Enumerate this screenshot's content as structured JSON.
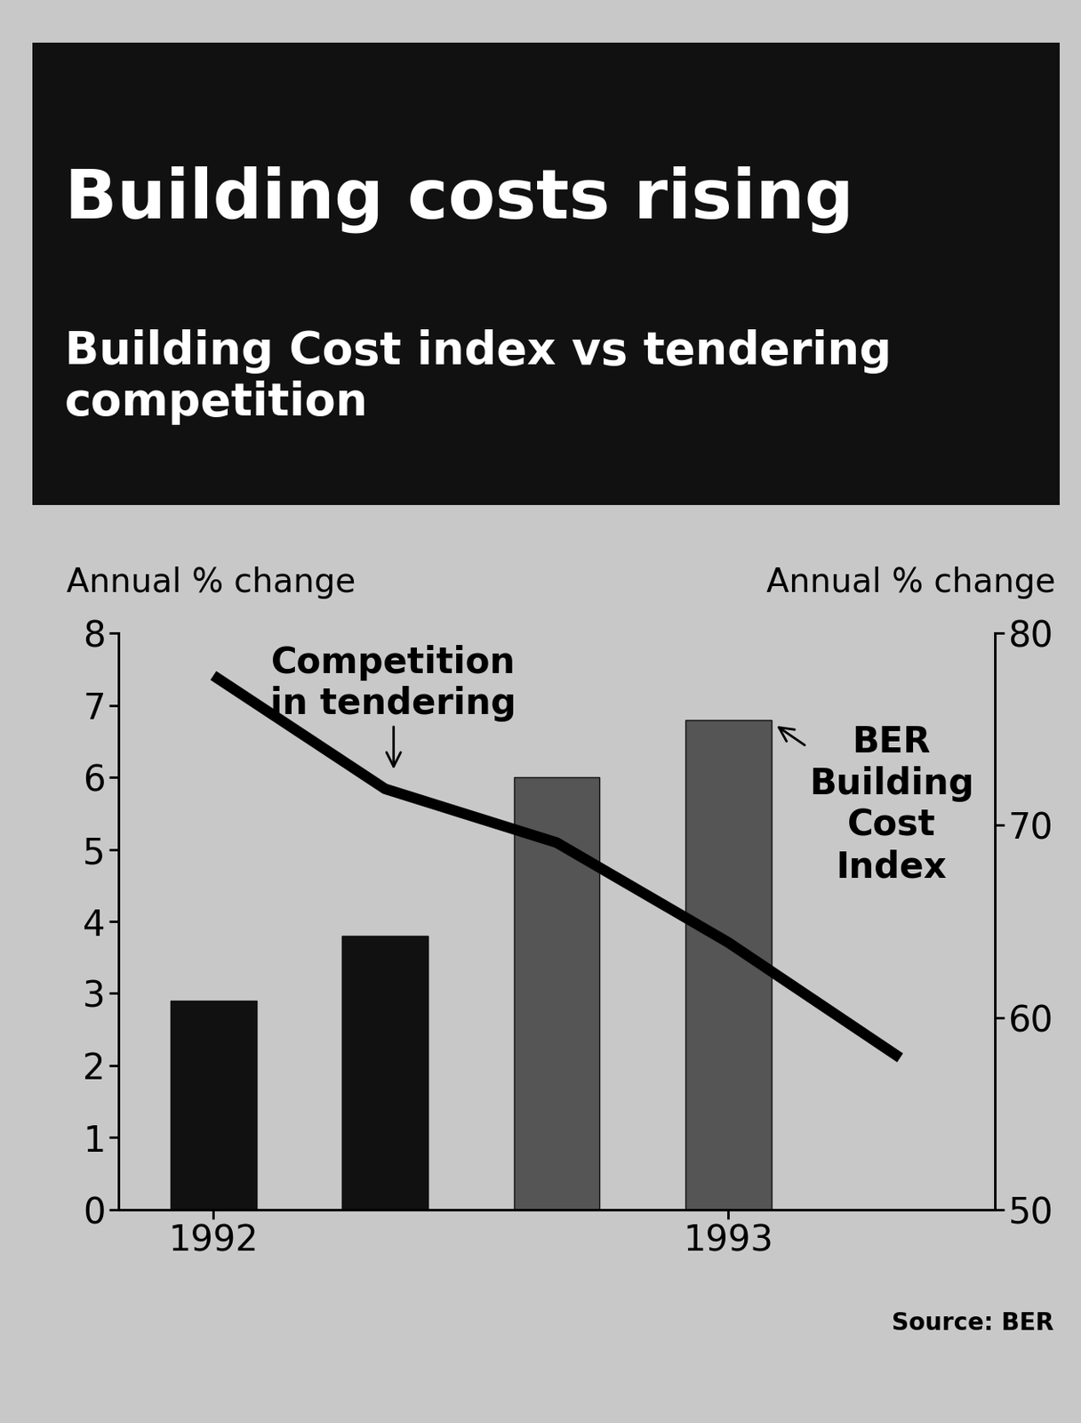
{
  "chart_data": {
    "type": "bar",
    "title": "Building costs rising",
    "subtitle": "Building Cost index vs tendering competition",
    "ylabel": "Annual % change",
    "y2label": "Annual % change",
    "source": "Source: BER",
    "categories": [
      "1992",
      null,
      null,
      "1993",
      null
    ],
    "series": [
      {
        "name": "BER Building Cost Index",
        "type": "bar",
        "colors": [
          "#111111",
          "#111111",
          "#555555",
          "#555555",
          "#111111"
        ],
        "values": [
          2.9,
          3.8,
          6.0,
          6.8,
          null
        ]
      },
      {
        "name": "Competition in tendering",
        "type": "line",
        "axis": "y2",
        "color": "#000000",
        "values": [
          77.8,
          71.9,
          69.1,
          63.9,
          57.9
        ]
      }
    ],
    "ylim": [
      0,
      8
    ],
    "yticks": [
      0,
      1,
      2,
      3,
      4,
      5,
      6,
      7,
      8
    ],
    "y2lim": [
      50,
      80
    ],
    "y2ticks": [
      50,
      60,
      70,
      80
    ],
    "grid": false
  }
}
